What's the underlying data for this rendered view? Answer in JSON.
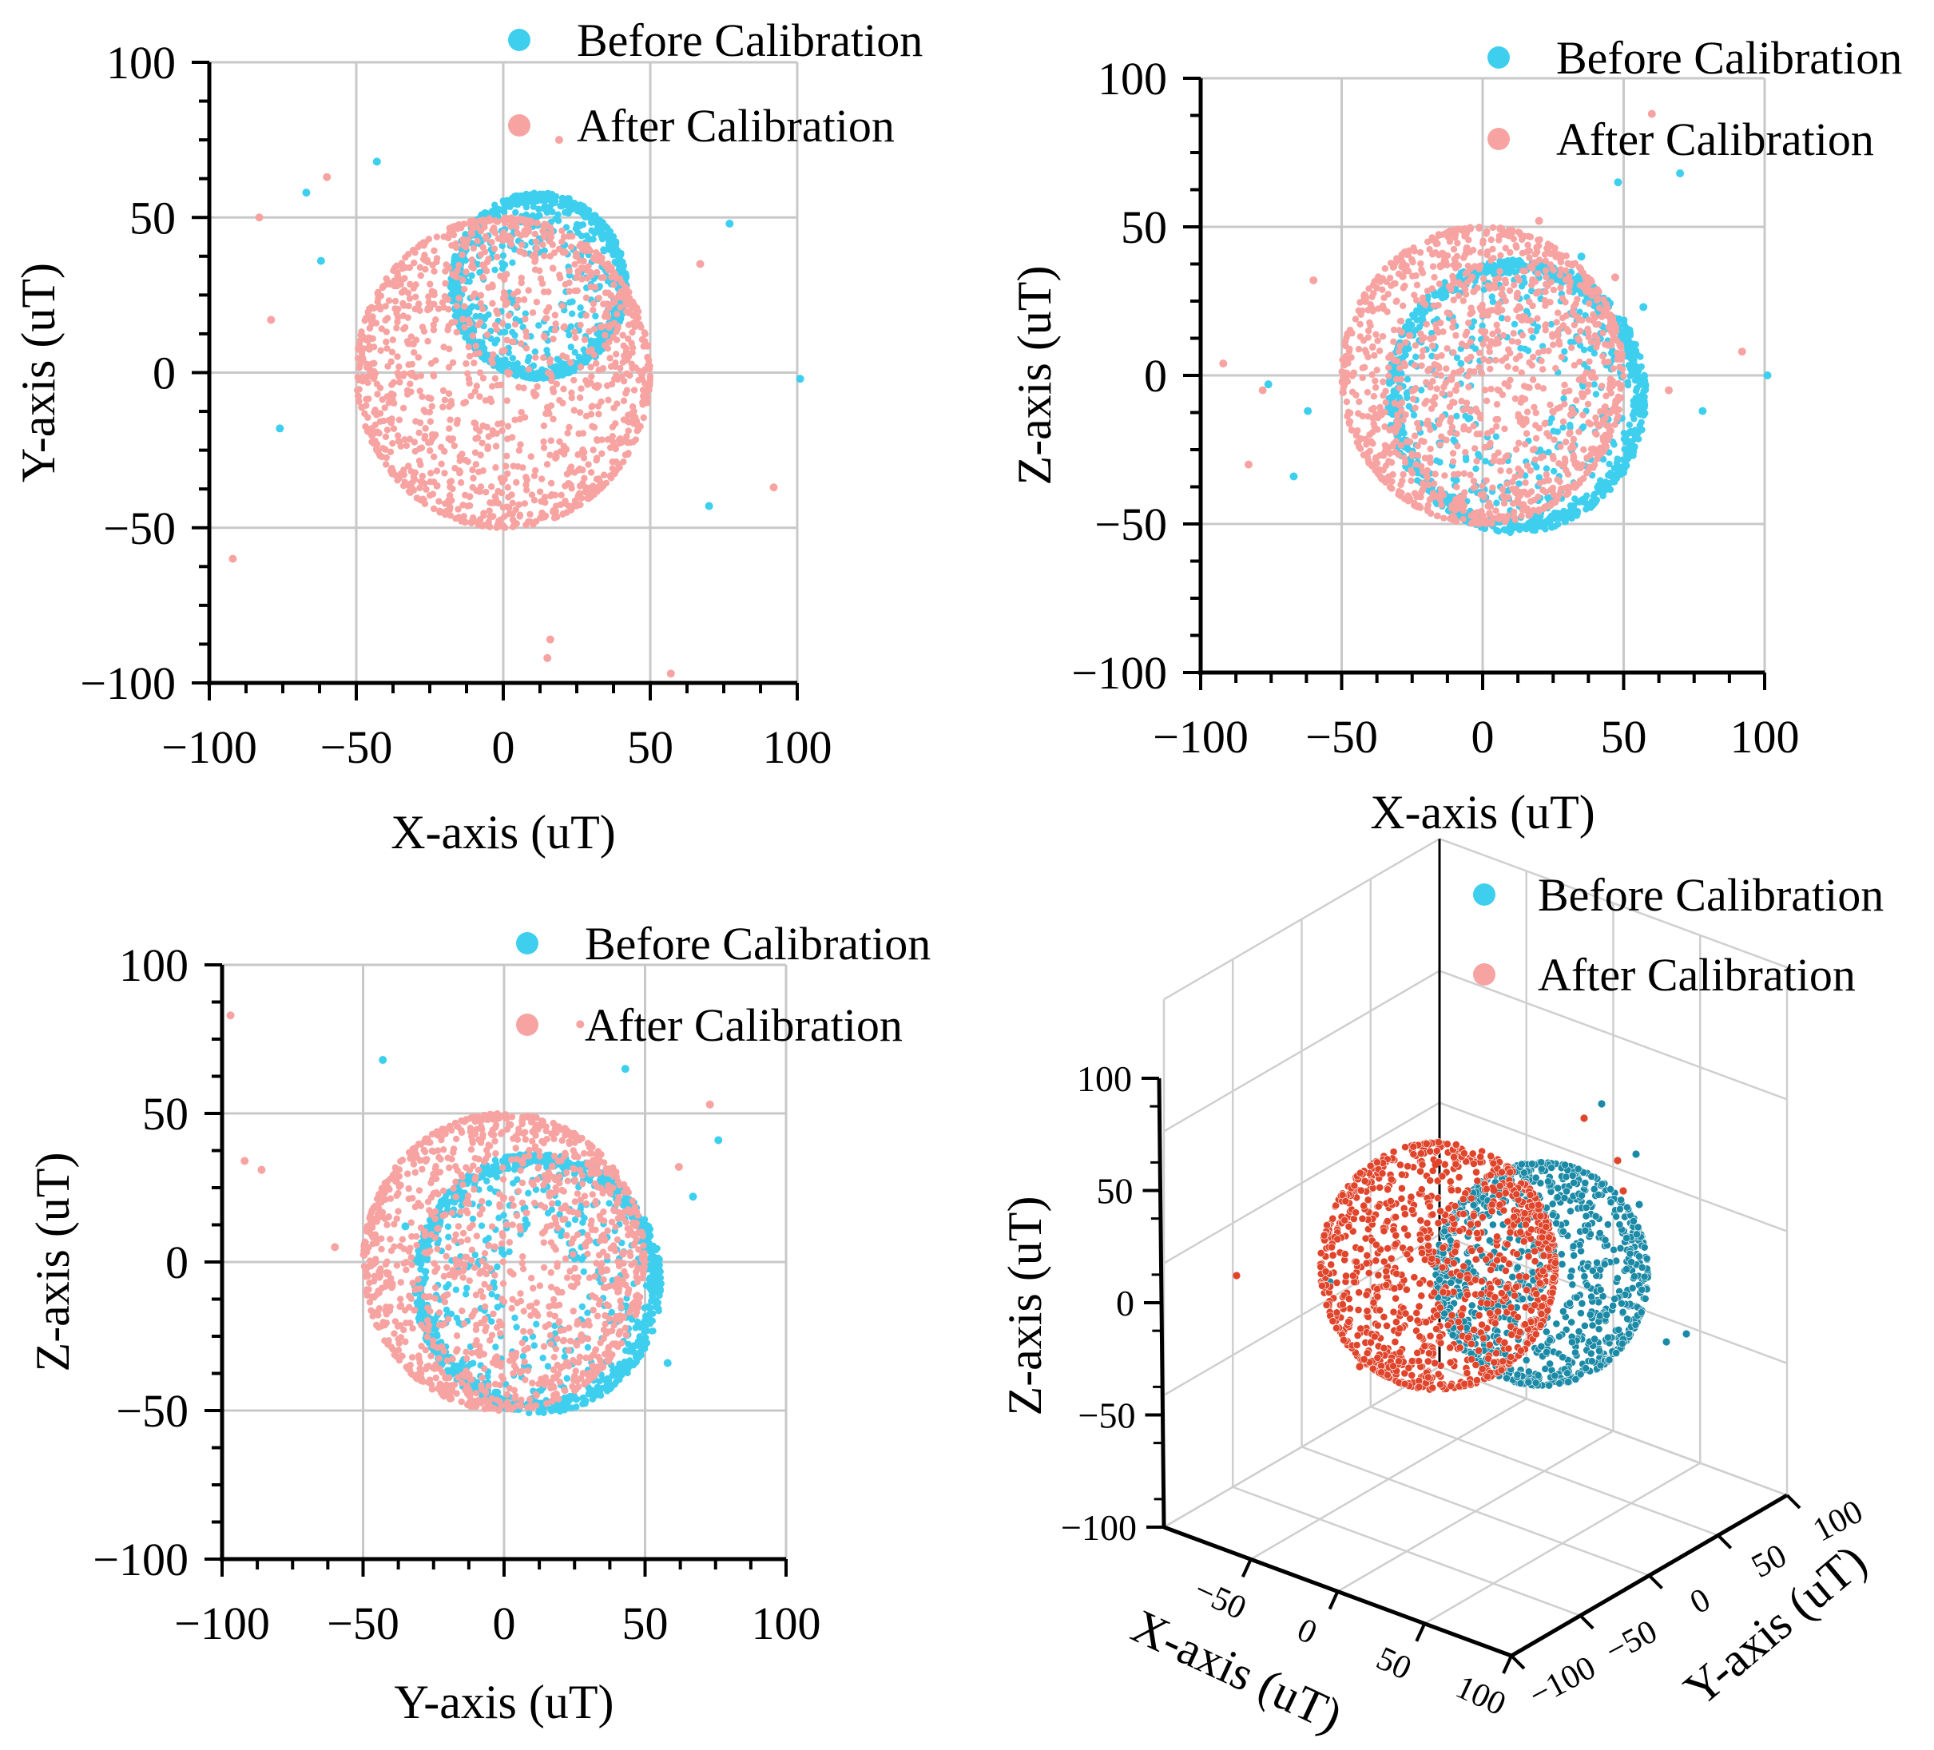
{
  "chart_data": [
    {
      "id": "xy",
      "type": "scatter",
      "xlabel": "X-axis (uT)",
      "ylabel": "Y-axis (uT)",
      "xlim": [
        -100,
        100
      ],
      "ylim": [
        -100,
        100
      ],
      "xticks": [
        "−100",
        "−50",
        "0",
        "50",
        "100"
      ],
      "yticks": [
        "100",
        "50",
        "0",
        "−50",
        "−100"
      ],
      "grid": true,
      "legend": "top-right",
      "series": [
        {
          "name": "Before Calibration",
          "color": "#3ecfef",
          "sphere": {
            "cx": 12,
            "cy": 28,
            "r": 30
          },
          "outliers": [
            [
              -43,
              68
            ],
            [
              -67,
              58
            ],
            [
              -62,
              36
            ],
            [
              -76,
              -18
            ],
            [
              77,
              48
            ],
            [
              101,
              -2
            ],
            [
              70,
              -43
            ]
          ]
        },
        {
          "name": "After Calibration",
          "color": "#f7a3a2",
          "sphere": {
            "cx": 0,
            "cy": 0,
            "r": 50
          },
          "outliers": [
            [
              -60,
              63
            ],
            [
              -83,
              50
            ],
            [
              -79,
              17
            ],
            [
              67,
              35
            ],
            [
              -92,
              -60
            ],
            [
              92,
              -37
            ],
            [
              16,
              -86
            ],
            [
              15,
              -92
            ],
            [
              57,
              -97
            ],
            [
              19,
              75
            ]
          ]
        }
      ]
    },
    {
      "id": "xz",
      "type": "scatter",
      "xlabel": "X-axis (uT)",
      "ylabel": "Z-axis (uT)",
      "xlim": [
        -100,
        100
      ],
      "ylim": [
        -100,
        100
      ],
      "xticks": [
        "−100",
        "−50",
        "0",
        "50",
        "100"
      ],
      "yticks": [
        "100",
        "50",
        "0",
        "−50",
        "−100"
      ],
      "grid": true,
      "legend": "top-right",
      "series": [
        {
          "name": "Before Calibration",
          "color": "#3ecfef",
          "sphere": {
            "cx": 12,
            "cy": -7,
            "r": 46
          },
          "outliers": [
            [
              48,
              65
            ],
            [
              70,
              68
            ],
            [
              35,
              40
            ],
            [
              57,
              23
            ],
            [
              -76,
              -3
            ],
            [
              -62,
              -12
            ],
            [
              -67,
              -34
            ],
            [
              78,
              -12
            ],
            [
              101,
              0
            ]
          ]
        },
        {
          "name": "After Calibration",
          "color": "#f7a3a2",
          "sphere": {
            "cx": 0,
            "cy": 0,
            "r": 50
          },
          "outliers": [
            [
              -92,
              4
            ],
            [
              -83,
              -30
            ],
            [
              -78,
              -5
            ],
            [
              -60,
              32
            ],
            [
              20,
              52
            ],
            [
              92,
              8
            ],
            [
              60,
              88
            ],
            [
              66,
              -5
            ],
            [
              47,
              33
            ]
          ]
        }
      ]
    },
    {
      "id": "yz",
      "type": "scatter",
      "xlabel": "Y-axis (uT)",
      "ylabel": "Z-axis (uT)",
      "xlim": [
        -100,
        100
      ],
      "ylim": [
        -100,
        100
      ],
      "xticks": [
        "−100",
        "−50",
        "0",
        "50",
        "100"
      ],
      "yticks": [
        "100",
        "50",
        "0",
        "−50",
        "−100"
      ],
      "grid": true,
      "legend": "top-right",
      "series": [
        {
          "name": "Before Calibration",
          "color": "#3ecfef",
          "sphere": {
            "cx": 12,
            "cy": -7,
            "r": 44
          },
          "outliers": [
            [
              -43,
              68
            ],
            [
              43,
              65
            ],
            [
              76,
              41
            ],
            [
              67,
              22
            ],
            [
              58,
              -34
            ],
            [
              -35,
              12
            ]
          ]
        },
        {
          "name": "After Calibration",
          "color": "#f7a3a2",
          "sphere": {
            "cx": 0,
            "cy": 0,
            "r": 50
          },
          "outliers": [
            [
              -97,
              83
            ],
            [
              -92,
              34
            ],
            [
              -86,
              31
            ],
            [
              -60,
              5
            ],
            [
              27,
              80
            ],
            [
              73,
              53
            ],
            [
              62,
              32
            ]
          ]
        }
      ]
    },
    {
      "id": "xyz",
      "type": "scatter",
      "xlabel": "X-axis (uT)",
      "ylabel": "Y-axis (uT)",
      "zlabel": "Z-axis (uT)",
      "xticks": [
        "−50",
        "0",
        "50",
        "100"
      ],
      "yticks": [
        "100",
        "50",
        "0",
        "−50",
        "−100"
      ],
      "zticks": [
        "100",
        "50",
        "0",
        "−50",
        "−100"
      ],
      "grid": true,
      "legend": "top-right",
      "series": [
        {
          "name": "Before Calibration",
          "color": "#1b8aa6",
          "legend_color": "#3ecfef"
        },
        {
          "name": "After Calibration",
          "color": "#e0442b",
          "legend_color": "#f7a3a2"
        }
      ]
    }
  ]
}
